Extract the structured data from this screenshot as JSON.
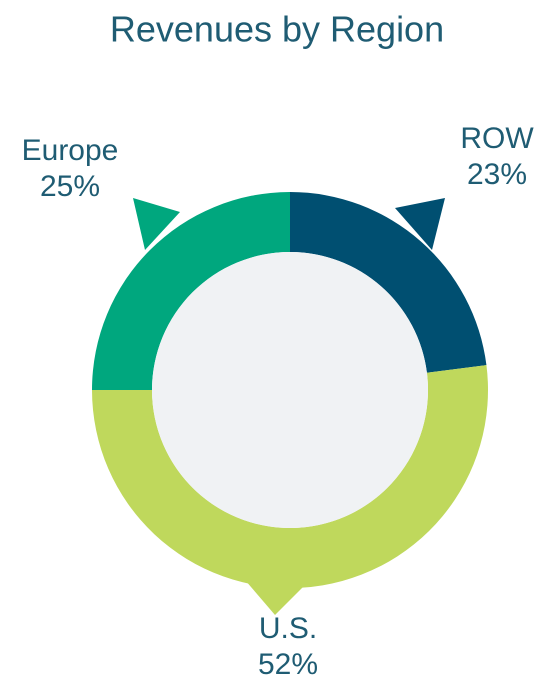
{
  "chart_data": {
    "type": "pie",
    "title": "Revenues by Region",
    "categories": [
      "ROW",
      "U.S.",
      "Europe"
    ],
    "values": [
      23,
      52,
      25
    ],
    "value_labels": [
      "23%",
      "52%",
      "25%"
    ],
    "colors": [
      "#004f71",
      "#bfd85c",
      "#00a77e"
    ],
    "donut": true
  }
}
